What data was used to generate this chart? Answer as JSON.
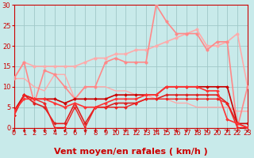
{
  "bg_color": "#c8eaea",
  "grid_color": "#a0c8c8",
  "xlabel": "Vent moyen/en rafales ( km/h )",
  "xlim": [
    0,
    23
  ],
  "ylim": [
    0,
    30
  ],
  "yticks": [
    0,
    5,
    10,
    15,
    20,
    25,
    30
  ],
  "xticks": [
    0,
    1,
    2,
    3,
    4,
    5,
    6,
    7,
    8,
    9,
    10,
    11,
    12,
    13,
    14,
    15,
    16,
    17,
    18,
    19,
    20,
    21,
    22,
    23
  ],
  "lines": [
    {
      "x": [
        0,
        1,
        2,
        3,
        4,
        5,
        6,
        7,
        8,
        9,
        10,
        11,
        12,
        13,
        14,
        15,
        16,
        17,
        18,
        19,
        20,
        21,
        22,
        23
      ],
      "y": [
        12,
        16,
        15,
        15,
        15,
        15,
        15,
        16,
        17,
        17,
        18,
        18,
        19,
        19,
        20,
        21,
        22,
        23,
        24,
        20,
        20,
        21,
        23,
        10
      ],
      "color": "#ffaaaa",
      "marker": "o",
      "ms": 2.5,
      "lw": 1.2
    },
    {
      "x": [
        0,
        1,
        2,
        3,
        4,
        5,
        6,
        7,
        8,
        9,
        10,
        11,
        12,
        13,
        14,
        15,
        16,
        17,
        18,
        19,
        20,
        21,
        22,
        23
      ],
      "y": [
        12,
        12,
        10,
        9,
        13,
        13,
        7,
        10,
        10,
        10,
        9,
        9,
        8,
        8,
        7,
        7,
        6,
        6,
        5,
        5,
        5,
        5,
        4,
        4
      ],
      "color": "#ffaaaa",
      "marker": null,
      "ms": 0,
      "lw": 1.0
    },
    {
      "x": [
        0,
        1,
        2,
        3,
        4,
        5,
        6,
        7,
        8,
        9,
        10,
        11,
        12,
        13,
        14,
        15,
        16,
        17,
        18,
        19,
        20,
        21,
        22,
        23
      ],
      "y": [
        12,
        16,
        6,
        14,
        13,
        10,
        7,
        10,
        10,
        16,
        17,
        16,
        16,
        16,
        30,
        26,
        23,
        23,
        23,
        19,
        21,
        21,
        0,
        10
      ],
      "color": "#ff8888",
      "marker": "o",
      "ms": 2.5,
      "lw": 1.2
    },
    {
      "x": [
        0,
        1,
        2,
        3,
        4,
        5,
        6,
        7,
        8,
        9,
        10,
        11,
        12,
        13,
        14,
        15,
        16,
        17,
        18,
        19,
        20,
        21,
        22,
        23
      ],
      "y": [
        4,
        8,
        7,
        7,
        7,
        6,
        7,
        7,
        7,
        7,
        8,
        8,
        8,
        8,
        8,
        10,
        10,
        10,
        10,
        10,
        10,
        10,
        1,
        1
      ],
      "color": "#cc0000",
      "marker": "D",
      "ms": 2.0,
      "lw": 1.2
    },
    {
      "x": [
        0,
        1,
        2,
        3,
        4,
        5,
        6,
        7,
        8,
        9,
        10,
        11,
        12,
        13,
        14,
        15,
        16,
        17,
        18,
        19,
        20,
        21,
        22,
        23
      ],
      "y": [
        3,
        8,
        6,
        5,
        1,
        1,
        6,
        1,
        5,
        5,
        6,
        6,
        6,
        7,
        7,
        8,
        8,
        8,
        8,
        8,
        8,
        6,
        1,
        0
      ],
      "color": "#dd2020",
      "marker": "D",
      "ms": 2.0,
      "lw": 1.2
    },
    {
      "x": [
        0,
        1,
        2,
        3,
        4,
        5,
        6,
        7,
        8,
        9,
        10,
        11,
        12,
        13,
        14,
        15,
        16,
        17,
        18,
        19,
        20,
        21,
        22,
        23
      ],
      "y": [
        3,
        8,
        7,
        6,
        0,
        0,
        5,
        0,
        5,
        5,
        5,
        5,
        6,
        7,
        7,
        7,
        7,
        7,
        7,
        7,
        7,
        6,
        0,
        0
      ],
      "color": "#ee2222",
      "marker": "D",
      "ms": 2.0,
      "lw": 1.0
    },
    {
      "x": [
        0,
        1,
        2,
        3,
        4,
        5,
        6,
        7,
        8,
        9,
        10,
        11,
        12,
        13,
        14,
        15,
        16,
        17,
        18,
        19,
        20,
        21,
        22,
        23
      ],
      "y": [
        4,
        7,
        7,
        7,
        6,
        5,
        6,
        5,
        5,
        6,
        7,
        7,
        7,
        8,
        8,
        10,
        10,
        10,
        10,
        9,
        9,
        2,
        1,
        0
      ],
      "color": "#ff3333",
      "marker": "D",
      "ms": 2.0,
      "lw": 1.2
    }
  ],
  "arrow_color": "#cc0000",
  "xlabel_color": "#cc0000",
  "xlabel_fontsize": 8,
  "tick_fontsize": 6,
  "tick_color": "#cc0000",
  "spine_color": "#cc0000"
}
